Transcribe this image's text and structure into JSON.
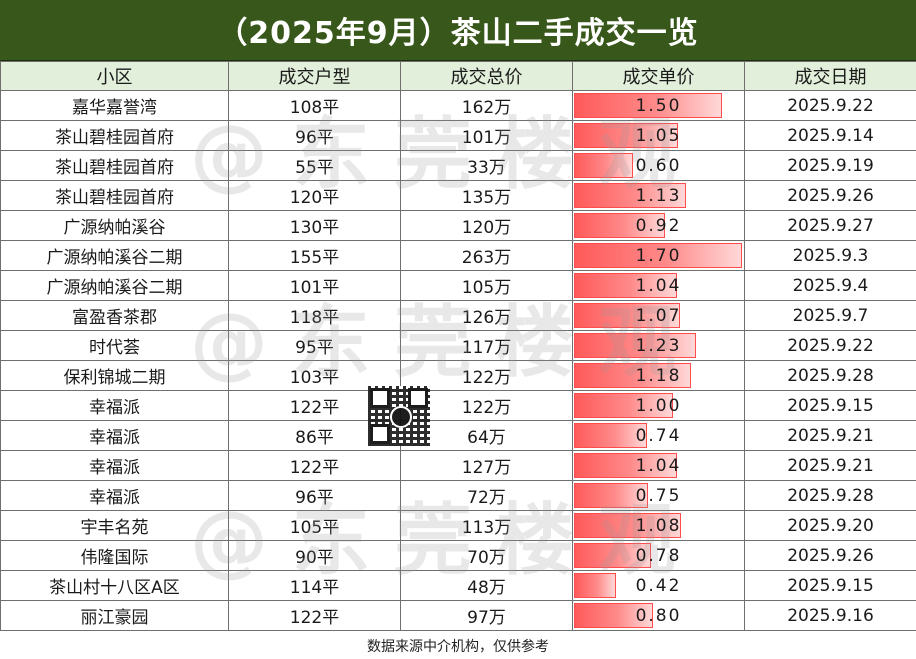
{
  "title": "（2025年9月）茶山二手成交一览",
  "headers": [
    "小区",
    "成交户型",
    "成交总价",
    "成交单价",
    "成交日期"
  ],
  "max_unit_price": 1.7,
  "rows": [
    {
      "community": "嘉华嘉誉湾",
      "area": "108平",
      "total": "162万",
      "unit": "1.50",
      "date": "2025.9.22"
    },
    {
      "community": "茶山碧桂园首府",
      "area": "96平",
      "total": "101万",
      "unit": "1.05",
      "date": "2025.9.14"
    },
    {
      "community": "茶山碧桂园首府",
      "area": "55平",
      "total": "33万",
      "unit": "0.60",
      "date": "2025.9.19"
    },
    {
      "community": "茶山碧桂园首府",
      "area": "120平",
      "total": "135万",
      "unit": "1.13",
      "date": "2025.9.26"
    },
    {
      "community": "广源纳帕溪谷",
      "area": "130平",
      "total": "120万",
      "unit": "0.92",
      "date": "2025.9.27"
    },
    {
      "community": "广源纳帕溪谷二期",
      "area": "155平",
      "total": "263万",
      "unit": "1.70",
      "date": "2025.9.3"
    },
    {
      "community": "广源纳帕溪谷二期",
      "area": "101平",
      "total": "105万",
      "unit": "1.04",
      "date": "2025.9.4"
    },
    {
      "community": "富盈香茶郡",
      "area": "118平",
      "total": "126万",
      "unit": "1.07",
      "date": "2025.9.7"
    },
    {
      "community": "时代荟",
      "area": "95平",
      "total": "117万",
      "unit": "1.23",
      "date": "2025.9.22"
    },
    {
      "community": "保利锦城二期",
      "area": "103平",
      "total": "122万",
      "unit": "1.18",
      "date": "2025.9.28"
    },
    {
      "community": "幸福派",
      "area": "122平",
      "total": "122万",
      "unit": "1.00",
      "date": "2025.9.15"
    },
    {
      "community": "幸福派",
      "area": "86平",
      "total": "64万",
      "unit": "0.74",
      "date": "2025.9.21"
    },
    {
      "community": "幸福派",
      "area": "122平",
      "total": "127万",
      "unit": "1.04",
      "date": "2025.9.21"
    },
    {
      "community": "幸福派",
      "area": "96平",
      "total": "72万",
      "unit": "0.75",
      "date": "2025.9.28"
    },
    {
      "community": "宇丰名苑",
      "area": "105平",
      "total": "113万",
      "unit": "1.08",
      "date": "2025.9.20"
    },
    {
      "community": "伟隆国际",
      "area": "90平",
      "total": "70万",
      "unit": "0.78",
      "date": "2025.9.26"
    },
    {
      "community": "茶山村十八区A区",
      "area": "114平",
      "total": "48万",
      "unit": "0.42",
      "date": "2025.9.15"
    },
    {
      "community": "丽江豪园",
      "area": "122平",
      "total": "97万",
      "unit": "0.80",
      "date": "2025.9.16"
    }
  ],
  "footer": "数据来源中介机构，仅供参考",
  "watermark": "@东莞楼观"
}
